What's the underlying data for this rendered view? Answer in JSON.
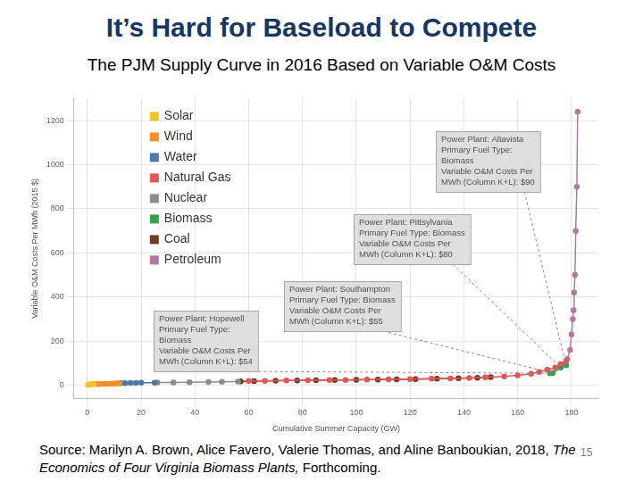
{
  "chart_data": {
    "type": "scatter",
    "title": "It’s Hard for Baseload to Compete",
    "subtitle": "The PJM Supply Curve in 2016 Based on Variable O&M Costs",
    "x_label": "Cumulative Summer Capacity (GW)",
    "y_label": "Variable O&M Costs Per MWh (2015 $)",
    "xlim": [
      -5,
      190
    ],
    "xticks": [
      0,
      20,
      40,
      60,
      80,
      100,
      120,
      140,
      160,
      180
    ],
    "ylim": [
      -60,
      1300
    ],
    "yticks": [
      0,
      200,
      400,
      600,
      800,
      1000,
      1200
    ],
    "grid": true,
    "legend": "upper left",
    "marker": "circle",
    "line_style": "solid",
    "series": [
      {
        "name": "Solar",
        "color": "#f2c12e",
        "x": [
          0.2,
          0.6,
          1,
          1.5,
          2,
          2.5
        ],
        "values": [
          2,
          3,
          3,
          4,
          4,
          5
        ]
      },
      {
        "name": "Wind",
        "color": "#f28e2b",
        "x": [
          3,
          4,
          5,
          6,
          7,
          8,
          9,
          10,
          11,
          12
        ],
        "values": [
          5,
          5,
          5,
          6,
          6,
          6,
          7,
          7,
          8,
          8
        ]
      },
      {
        "name": "Water",
        "color": "#4e79a7",
        "x": [
          12.5,
          14,
          16,
          18,
          20,
          25
        ],
        "values": [
          9,
          9,
          10,
          10,
          11,
          11
        ]
      },
      {
        "name": "Natural Gas",
        "color": "#e15759",
        "x": [
          60,
          66,
          74,
          82,
          90,
          96,
          104,
          112,
          120,
          128,
          135,
          142,
          148,
          155,
          160,
          165,
          168,
          171,
          174,
          176,
          178
        ],
        "values": [
          20,
          20,
          22,
          23,
          24,
          24,
          26,
          27,
          28,
          30,
          31,
          33,
          36,
          40,
          45,
          52,
          60,
          70,
          80,
          95,
          110
        ]
      },
      {
        "name": "Nuclear",
        "color": "#8c8c8c",
        "x": [
          26,
          32,
          38,
          45,
          50,
          56
        ],
        "values": [
          12,
          12,
          13,
          14,
          15,
          16
        ]
      },
      {
        "name": "Biomass",
        "color": "#3a9d4a",
        "x": [
          172,
          173,
          176,
          178
        ],
        "values": [
          54,
          55,
          80,
          90
        ]
      },
      {
        "name": "Coal",
        "color": "#6b3e26",
        "x": [
          57,
          62,
          70,
          78,
          85,
          92,
          100,
          108,
          115,
          122,
          130,
          138,
          145,
          150
        ],
        "values": [
          18,
          19,
          21,
          22,
          23,
          24,
          25,
          26,
          27,
          28,
          30,
          32,
          34,
          37
        ]
      },
      {
        "name": "Petroleum",
        "color": "#b07aa1",
        "x": [
          178.5,
          179.5,
          180,
          180.5,
          180.8,
          181,
          181.3,
          181.6,
          182,
          182.3
        ],
        "values": [
          120,
          160,
          230,
          300,
          340,
          420,
          500,
          700,
          900,
          1240
        ]
      }
    ],
    "annotations": [
      {
        "lines": [
          "Power Plant: Altavista",
          "Primary Fuel Type:",
          "Biomass",
          "Variable O&M Costs Per",
          "MWh (Column K+L): $90"
        ],
        "x": 178,
        "y": 90
      },
      {
        "lines": [
          "Power Plant: Pittsylvania",
          "Primary Fuel Type: Biomass",
          "Variable O&M Costs Per",
          "MWh (Column K+L): $80"
        ],
        "x": 176,
        "y": 80
      },
      {
        "lines": [
          "Power Plant: Southampton",
          "Primary Fuel Type: Biomass",
          "Variable O&M Costs Per",
          "MWh (Column K+L): $55"
        ],
        "x": 173,
        "y": 55
      },
      {
        "lines": [
          "Power Plant: Hopewell",
          "Primary Fuel Type:",
          "Biomass",
          "Variable O&M Costs Per",
          "MWh (Column K+L): $54"
        ],
        "x": 172,
        "y": 54
      }
    ],
    "source": {
      "text": "Source: Marilyn A. Brown, Alice Favero, Valerie Thomas, and Aline Banboukian, 2018,",
      "work": "The Economics of Four Virginia Biomass Plants,",
      "note": "Forthcoming."
    },
    "page_number": "15"
  }
}
